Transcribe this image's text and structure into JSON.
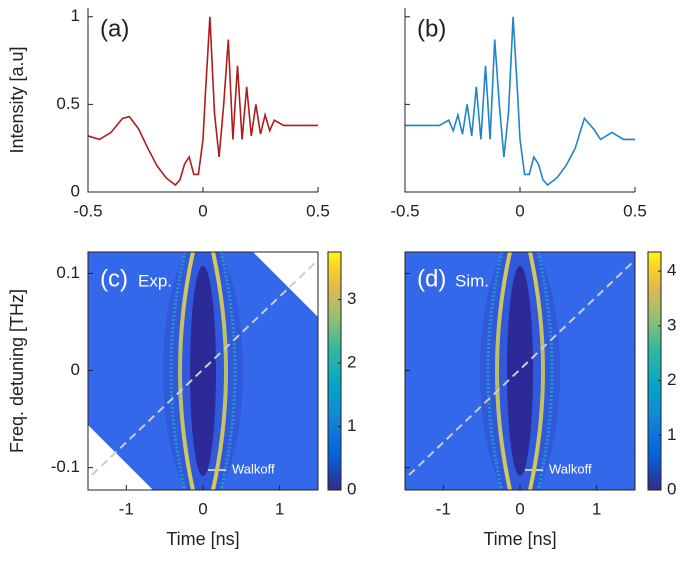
{
  "chart_data": [
    {
      "type": "line",
      "panel_label": "(a)",
      "ylabel": "Intensity [a.u]",
      "color": "#b01c1c",
      "x": [
        -0.5,
        -0.45,
        -0.4,
        -0.35,
        -0.32,
        -0.28,
        -0.24,
        -0.2,
        -0.16,
        -0.12,
        -0.1,
        -0.08,
        -0.06,
        -0.04,
        -0.02,
        0,
        0.01,
        0.03,
        0.05,
        0.07,
        0.09,
        0.11,
        0.13,
        0.15,
        0.17,
        0.19,
        0.21,
        0.23,
        0.25,
        0.27,
        0.29,
        0.31,
        0.35,
        0.4,
        0.5
      ],
      "values": [
        0.32,
        0.3,
        0.34,
        0.42,
        0.43,
        0.36,
        0.25,
        0.15,
        0.08,
        0.04,
        0.07,
        0.16,
        0.2,
        0.1,
        0.1,
        0.3,
        0.55,
        1,
        0.45,
        0.2,
        0.5,
        0.87,
        0.3,
        0.72,
        0.3,
        0.6,
        0.32,
        0.5,
        0.33,
        0.44,
        0.35,
        0.41,
        0.38,
        0.38,
        0.38
      ],
      "xlim": [
        -0.5,
        0.5
      ],
      "xticks": [
        -0.5,
        0,
        0.5
      ],
      "ylim": [
        0,
        1.05
      ],
      "yticks": [
        0,
        0.5,
        1
      ],
      "ytick_labels": true
    },
    {
      "type": "line",
      "panel_label": "(b)",
      "color": "#1f85c8",
      "x": [
        -0.5,
        -0.4,
        -0.35,
        -0.31,
        -0.29,
        -0.27,
        -0.25,
        -0.23,
        -0.21,
        -0.19,
        -0.17,
        -0.15,
        -0.13,
        -0.11,
        -0.09,
        -0.07,
        -0.05,
        -0.03,
        -0.01,
        0,
        0.02,
        0.04,
        0.06,
        0.08,
        0.1,
        0.12,
        0.16,
        0.2,
        0.24,
        0.28,
        0.32,
        0.35,
        0.4,
        0.45,
        0.5
      ],
      "values": [
        0.38,
        0.38,
        0.38,
        0.41,
        0.35,
        0.44,
        0.33,
        0.5,
        0.32,
        0.6,
        0.3,
        0.72,
        0.3,
        0.87,
        0.5,
        0.2,
        0.45,
        1,
        0.55,
        0.3,
        0.1,
        0.1,
        0.2,
        0.16,
        0.07,
        0.04,
        0.08,
        0.15,
        0.25,
        0.42,
        0.36,
        0.3,
        0.34,
        0.3,
        0.3
      ],
      "xlim": [
        -0.5,
        0.5
      ],
      "xticks": [
        -0.5,
        0,
        0.5
      ],
      "ylim": [
        0,
        1.05
      ],
      "yticks": [
        0,
        0.5,
        1
      ],
      "ytick_labels": false
    },
    {
      "type": "heatmap",
      "panel_label": "(c)",
      "annotation": "Exp.",
      "legend": "Walkoff",
      "xlabel": "Time [ns]",
      "ylabel": "Freq. detuning [THz]",
      "xlim": [
        -1.5,
        1.5
      ],
      "xticks": [
        -1,
        0,
        1
      ],
      "ylim": [
        -0.123,
        0.122
      ],
      "yticks": [
        -0.1,
        0,
        0.1
      ],
      "ytick_labels": true,
      "clim": [
        0,
        3.75
      ],
      "cticks": [
        0,
        1,
        2,
        3
      ],
      "corners_masked": true
    },
    {
      "type": "heatmap",
      "panel_label": "(d)",
      "annotation": "Sim.",
      "legend": "Walkoff",
      "xlabel": "Time [ns]",
      "xlim": [
        -1.5,
        1.5
      ],
      "xticks": [
        -1,
        0,
        1
      ],
      "ylim": [
        -0.123,
        0.122
      ],
      "yticks": [
        -0.1,
        0,
        0.1
      ],
      "ytick_labels": false,
      "clim": [
        0,
        4.35
      ],
      "cticks": [
        0,
        1,
        2,
        3,
        4
      ],
      "corners_masked": false
    }
  ]
}
